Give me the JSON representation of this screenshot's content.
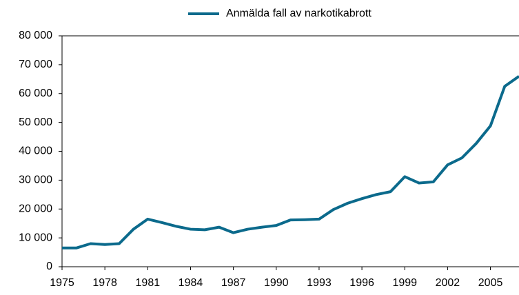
{
  "chart_data": {
    "type": "line",
    "x": [
      1975,
      1976,
      1977,
      1978,
      1979,
      1980,
      1981,
      1982,
      1983,
      1984,
      1985,
      1986,
      1987,
      1988,
      1989,
      1990,
      1991,
      1992,
      1993,
      1994,
      1995,
      1996,
      1997,
      1998,
      1999,
      2000,
      2001,
      2002,
      2003,
      2004,
      2005,
      2006,
      2007
    ],
    "series": [
      {
        "name": "Anmälda fall av narkotikabrott",
        "color": "#0b6a8c",
        "values": [
          6500,
          6500,
          8000,
          7700,
          8000,
          13000,
          16500,
          15300,
          14000,
          13000,
          12800,
          13700,
          11800,
          13000,
          13700,
          14300,
          16200,
          16300,
          16500,
          19800,
          22000,
          23600,
          25000,
          26000,
          31200,
          29000,
          29400,
          35300,
          37700,
          42700,
          48800,
          62500,
          66000
        ]
      }
    ],
    "xlim": [
      1975,
      2007
    ],
    "xticks": [
      1975,
      1978,
      1981,
      1984,
      1987,
      1990,
      1993,
      1996,
      1999,
      2002,
      2005
    ],
    "ylim": [
      0,
      80000
    ],
    "yticks": [
      0,
      {
        "value": 10000,
        "label": "10 000"
      },
      {
        "value": 20000,
        "label": "20 000"
      },
      {
        "value": 30000,
        "label": "30 000"
      },
      {
        "value": 40000,
        "label": "40 000"
      },
      {
        "value": 50000,
        "label": "50 000"
      },
      {
        "value": 60000,
        "label": "60 000"
      },
      {
        "value": 70000,
        "label": "70 000"
      },
      {
        "value": 80000,
        "label": "80 000"
      }
    ],
    "legend": "top"
  }
}
